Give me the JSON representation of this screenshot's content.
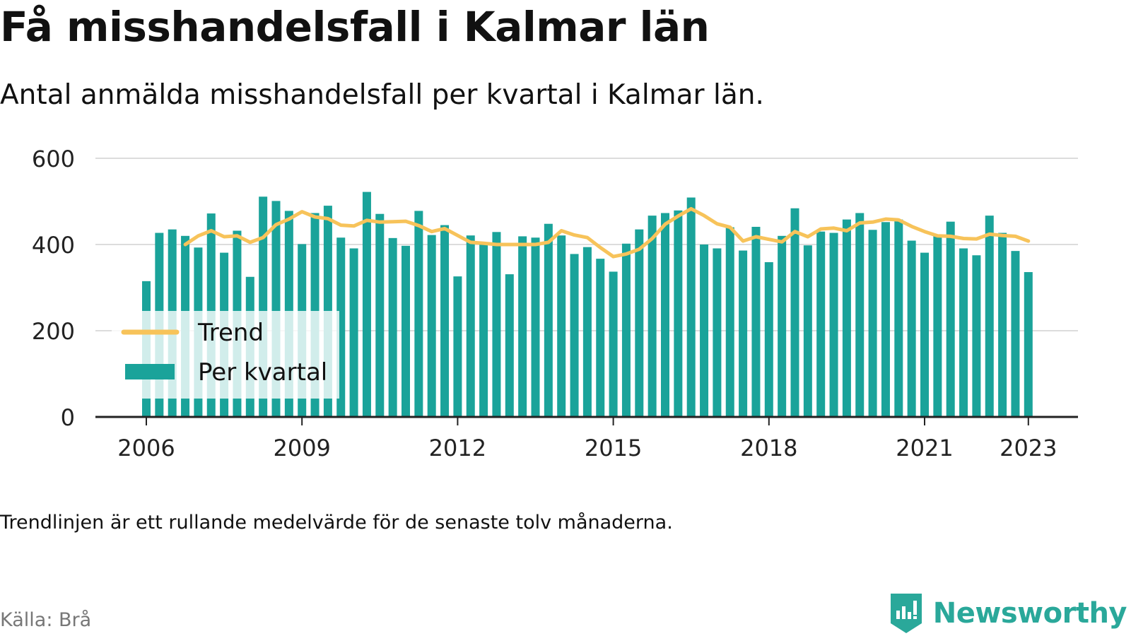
{
  "header": {
    "title": "Få misshandelsfall i Kalmar län",
    "subtitle": "Antal anmälda misshandelsfall per kvartal i Kalmar län."
  },
  "footer": {
    "note": "Trendlinjen är ett rullande medelvärde för de senaste tolv månaderna.",
    "source": "Källa: Brå",
    "brand": "Newsworthy"
  },
  "colors": {
    "bars": "#1aa39a",
    "trend": "#f7c35a",
    "grid": "#dcdcdc",
    "brand": "#2aa89a"
  },
  "chart_data": {
    "type": "bar",
    "x_tick_labels": [
      "2006",
      "2009",
      "2012",
      "2015",
      "2018",
      "2021",
      "2023"
    ],
    "x_tick_years": [
      2006,
      2009,
      2012,
      2015,
      2018,
      2021,
      2023
    ],
    "y_ticks": [
      0,
      200,
      400,
      600
    ],
    "ylim": [
      0,
      600
    ],
    "grid": true,
    "legend_position": "bottom-left",
    "first_quarter": "2006 Q1",
    "series": [
      {
        "name": "Per kvartal",
        "type": "bar",
        "values": [
          315,
          427,
          435,
          420,
          393,
          472,
          381,
          432,
          325,
          511,
          501,
          478,
          401,
          473,
          490,
          416,
          391,
          522,
          471,
          415,
          397,
          478,
          422,
          445,
          326,
          421,
          404,
          429,
          331,
          419,
          416,
          448,
          421,
          378,
          394,
          367,
          337,
          402,
          435,
          467,
          473,
          479,
          509,
          400,
          391,
          440,
          386,
          441,
          359,
          420,
          484,
          398,
          430,
          427,
          458,
          473,
          434,
          452,
          458,
          409,
          381,
          420,
          453,
          391,
          375,
          467,
          427,
          385,
          336
        ]
      },
      {
        "name": "Trend",
        "type": "line",
        "start_index": 3,
        "values": [
          400,
          420,
          432,
          418,
          420,
          405,
          416,
          446,
          459,
          476,
          464,
          460,
          445,
          443,
          456,
          452,
          453,
          454,
          444,
          430,
          437,
          421,
          405,
          403,
          400,
          400,
          400,
          400,
          405,
          432,
          422,
          416,
          393,
          372,
          378,
          389,
          414,
          447,
          466,
          483,
          467,
          448,
          440,
          408,
          418,
          412,
          406,
          430,
          418,
          436,
          438,
          432,
          450,
          452,
          459,
          457,
          442,
          430,
          420,
          419,
          414,
          413,
          424,
          421,
          419,
          408
        ]
      }
    ]
  }
}
